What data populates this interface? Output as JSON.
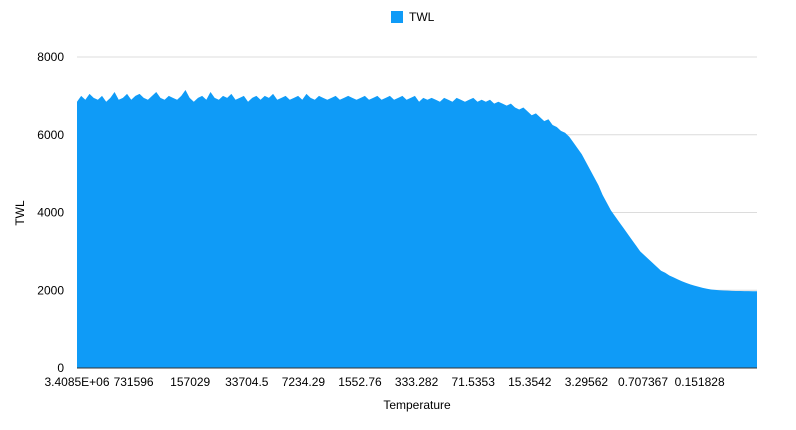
{
  "chart_data": {
    "type": "area",
    "title": "",
    "xlabel": "Temperature",
    "ylabel": "TWL",
    "ylim": [
      0,
      8000
    ],
    "yticks": [
      0,
      2000,
      4000,
      6000,
      8000
    ],
    "grid": true,
    "legend_position": "top-center",
    "x_tick_labels": [
      "3.4085E+06",
      "731596",
      "157029",
      "33704.5",
      "7234.29",
      "1552.76",
      "333.282",
      "71.5353",
      "15.3542",
      "3.29562",
      "0.707367",
      "0.151828"
    ],
    "series": [
      {
        "name": "TWL",
        "color": "#0f9bf7",
        "values": [
          6850,
          7000,
          6900,
          7050,
          6950,
          6900,
          7000,
          6850,
          6950,
          7100,
          6900,
          6950,
          7050,
          6900,
          7000,
          7050,
          6950,
          6900,
          7000,
          7100,
          6950,
          6900,
          7000,
          6950,
          6900,
          7000,
          7150,
          6950,
          6850,
          6950,
          7000,
          6900,
          7100,
          6950,
          6900,
          7000,
          6950,
          7050,
          6900,
          6950,
          7000,
          6850,
          6950,
          7000,
          6900,
          7000,
          6950,
          7050,
          6900,
          6950,
          7000,
          6900,
          6950,
          7000,
          6900,
          7050,
          6950,
          6900,
          7000,
          6950,
          6900,
          6950,
          7000,
          6900,
          6950,
          7000,
          6950,
          6900,
          6950,
          7000,
          6900,
          6950,
          7000,
          6900,
          6950,
          7000,
          6900,
          6950,
          7000,
          6900,
          6950,
          7000,
          6850,
          6950,
          6900,
          6950,
          6900,
          6850,
          6950,
          6900,
          6850,
          6950,
          6900,
          6850,
          6900,
          6950,
          6850,
          6900,
          6850,
          6900,
          6800,
          6850,
          6800,
          6750,
          6800,
          6700,
          6650,
          6700,
          6600,
          6500,
          6550,
          6450,
          6350,
          6400,
          6250,
          6200,
          6100,
          6050,
          5950,
          5800,
          5650,
          5500,
          5300,
          5100,
          4900,
          4700,
          4450,
          4250,
          4050,
          3900,
          3750,
          3600,
          3450,
          3300,
          3150,
          3000,
          2900,
          2800,
          2700,
          2600,
          2500,
          2450,
          2380,
          2330,
          2280,
          2230,
          2190,
          2150,
          2120,
          2090,
          2060,
          2040,
          2020,
          2010,
          2000,
          1995,
          1990,
          1985,
          1980,
          1980,
          1978,
          1976,
          1975,
          1975
        ]
      }
    ]
  }
}
